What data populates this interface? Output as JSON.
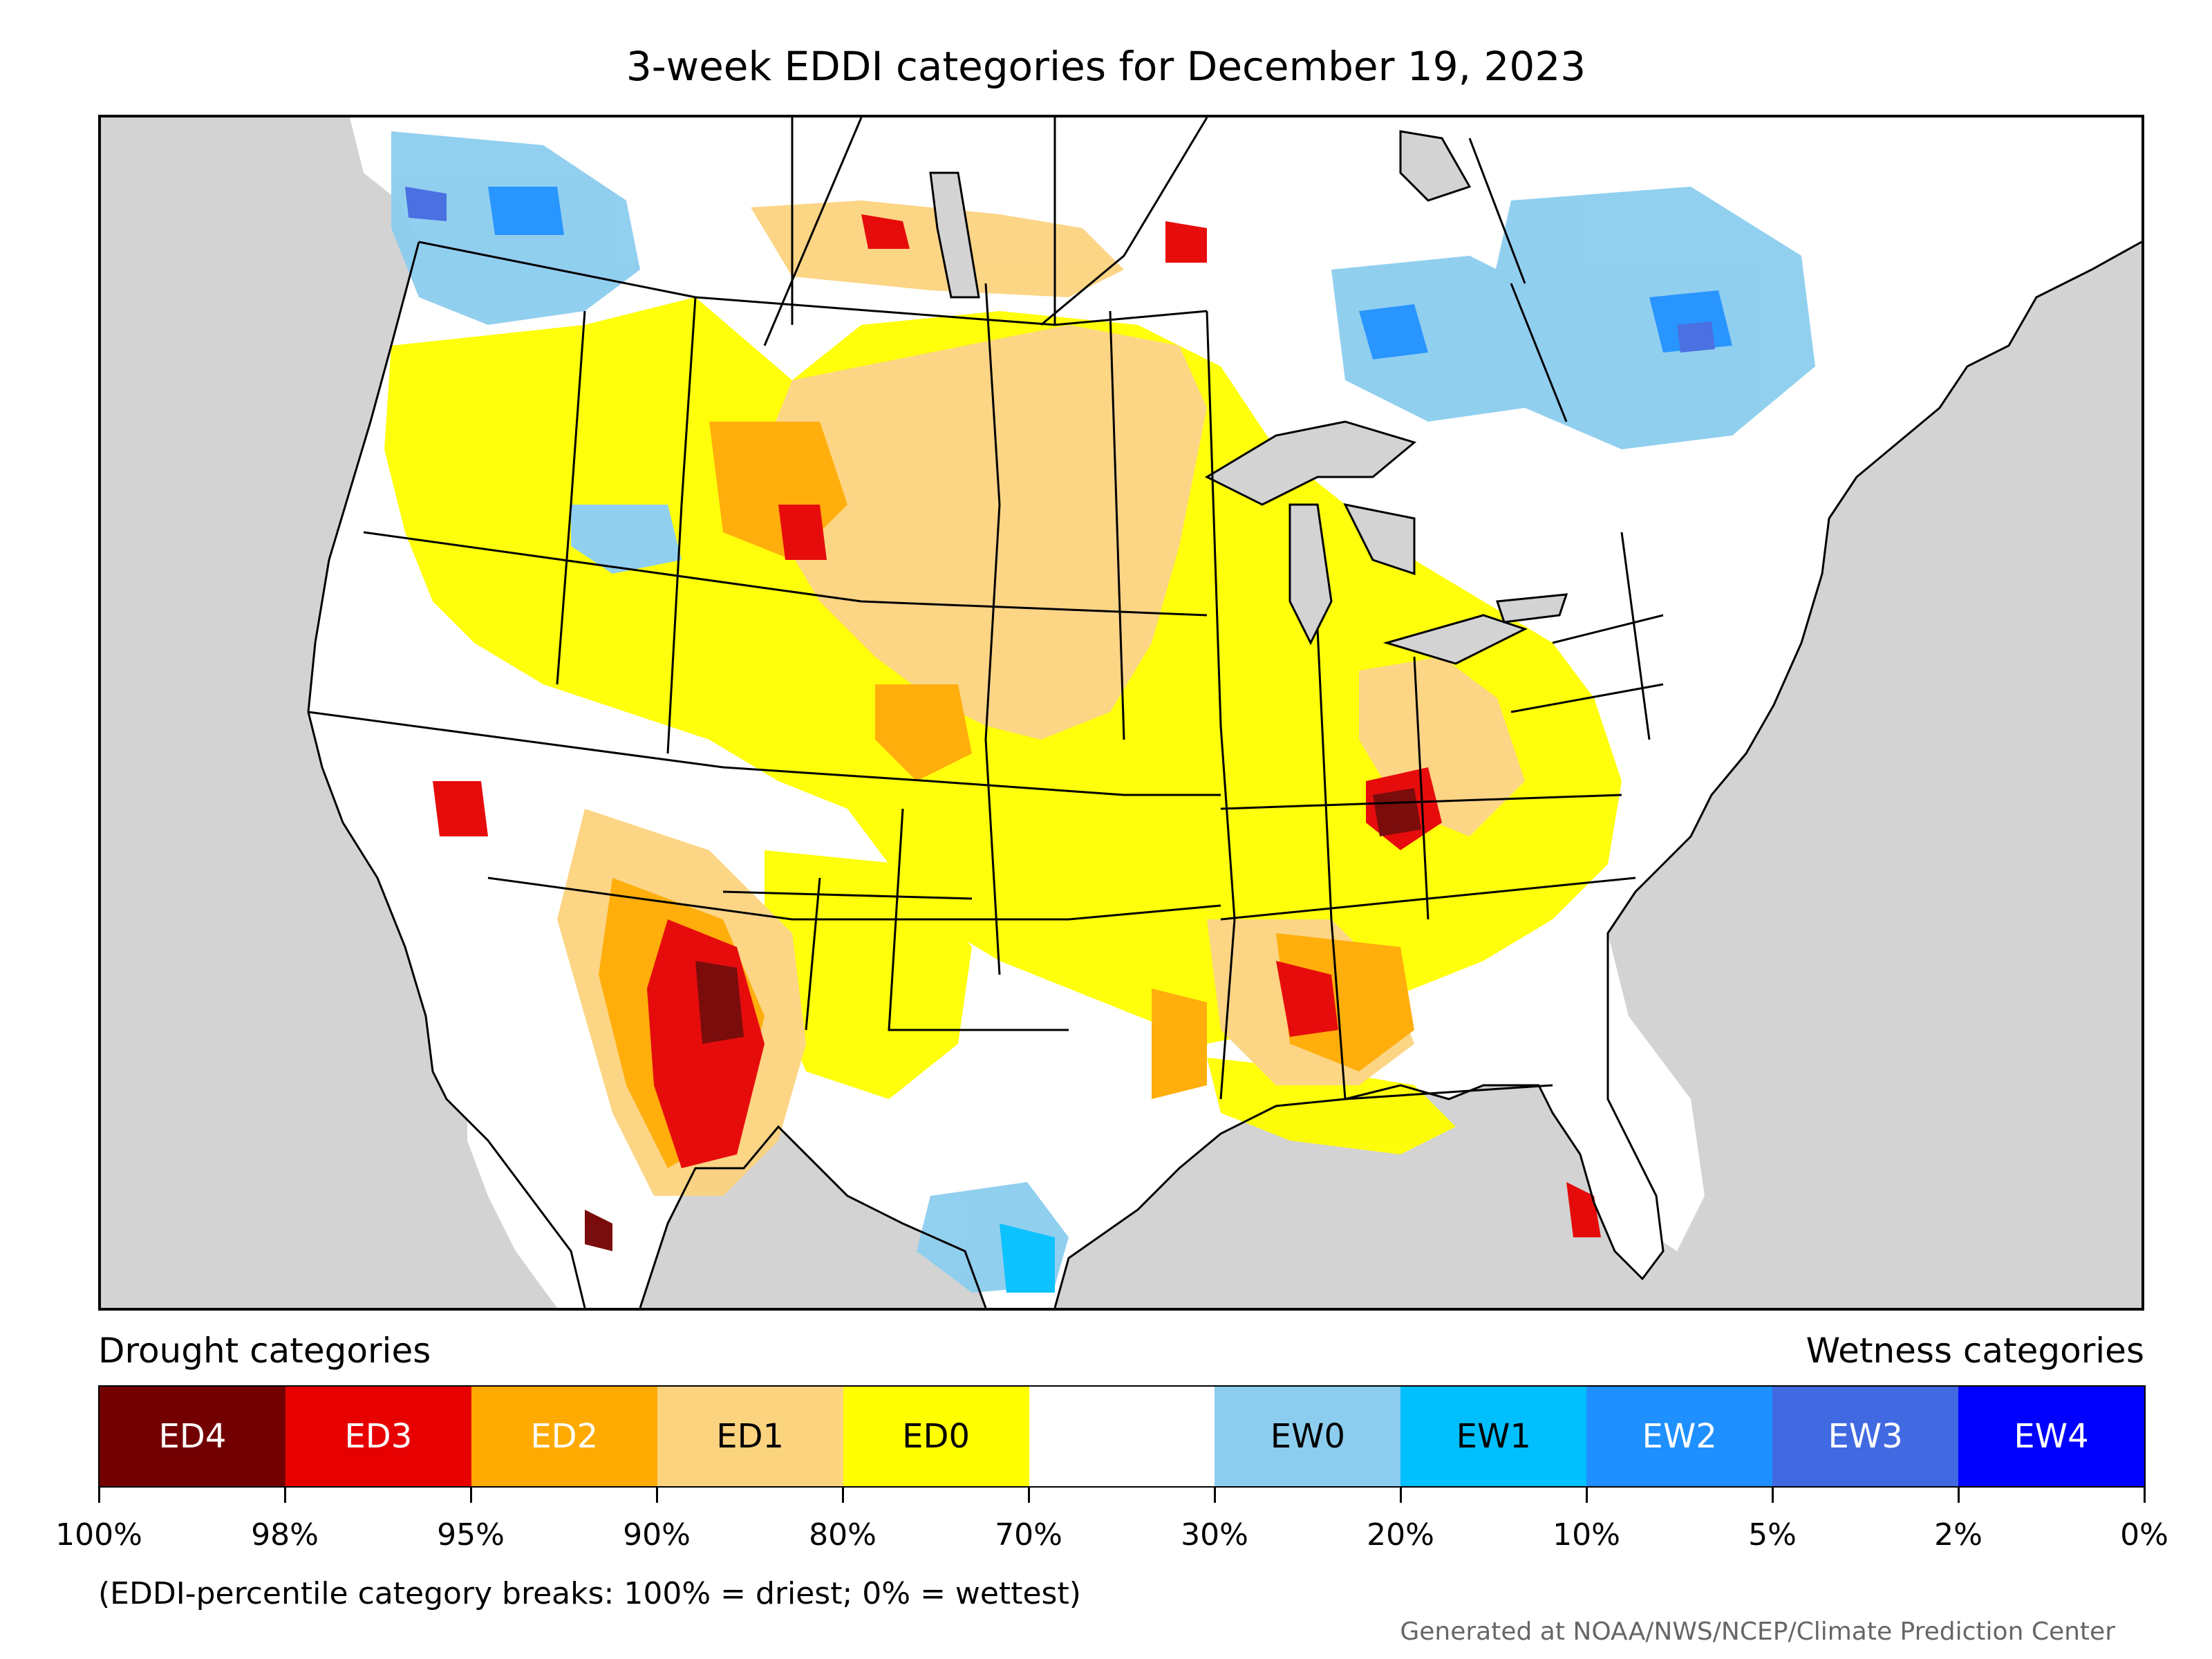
{
  "title": "3-week EDDI categories for December 19, 2023",
  "legend": {
    "drought_label": "Drought categories",
    "wetness_label": "Wetness categories",
    "categories": [
      {
        "label": "ED4",
        "color": "#730000",
        "text_color": "#ffffff"
      },
      {
        "label": "ED3",
        "color": "#e60000",
        "text_color": "#ffffff"
      },
      {
        "label": "ED2",
        "color": "#ffaa00",
        "text_color": "#ffffff"
      },
      {
        "label": "ED1",
        "color": "#fcd37f",
        "text_color": "#000000"
      },
      {
        "label": "ED0",
        "color": "#ffff00",
        "text_color": "#000000"
      },
      {
        "label": "",
        "color": "#ffffff",
        "text_color": "#000000"
      },
      {
        "label": "EW0",
        "color": "#8ccdef",
        "text_color": "#000000"
      },
      {
        "label": "EW1",
        "color": "#00bfff",
        "text_color": "#000000"
      },
      {
        "label": "EW2",
        "color": "#1e90ff",
        "text_color": "#ffffff"
      },
      {
        "label": "EW3",
        "color": "#4169e1",
        "text_color": "#ffffff"
      },
      {
        "label": "EW4",
        "color": "#0000ff",
        "text_color": "#ffffff"
      }
    ],
    "tick_labels": [
      "100%",
      "98%",
      "95%",
      "90%",
      "80%",
      "70%",
      "30%",
      "20%",
      "10%",
      "5%",
      "2%",
      "0%"
    ]
  },
  "footnote": "(EDDI-percentile category breaks: 100% = driest; 0% = wettest)",
  "credit": "Generated at NOAA/NWS/NCEP/Climate Prediction Center",
  "colors": {
    "water": "#d3d3d3",
    "land": "#ffffff",
    "border": "#000000"
  }
}
